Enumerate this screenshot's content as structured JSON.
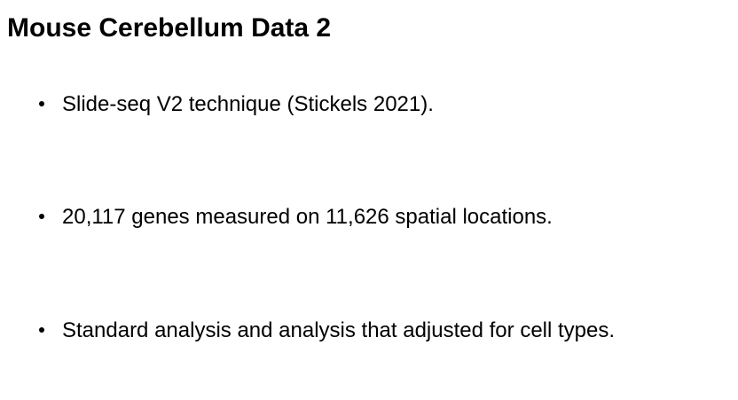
{
  "slide": {
    "title": "Mouse Cerebellum Data 2",
    "bullets": [
      {
        "text": "Slide-seq V2 technique (Stickels 2021)."
      },
      {
        "text": "20,117 genes measured on 11,626 spatial locations."
      },
      {
        "text": "Standard analysis and analysis that adjusted for cell types."
      }
    ]
  }
}
